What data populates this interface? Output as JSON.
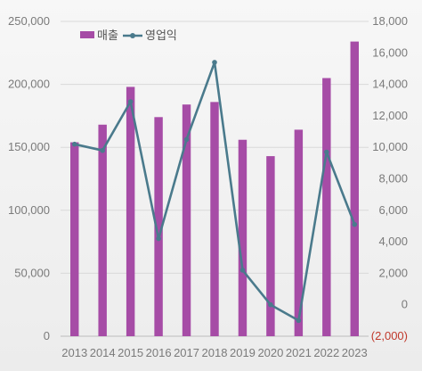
{
  "chart_data": {
    "type": "bar",
    "categories": [
      "2013",
      "2014",
      "2015",
      "2016",
      "2017",
      "2018",
      "2019",
      "2020",
      "2021",
      "2022",
      "2023"
    ],
    "series": [
      {
        "name": "매출",
        "type": "bar",
        "axis": "left",
        "color": "#a64ca6",
        "values": [
          154000,
          168000,
          198000,
          174000,
          184000,
          186000,
          156000,
          143000,
          164000,
          205000,
          234000
        ]
      },
      {
        "name": "영업익",
        "type": "line",
        "axis": "right",
        "color": "#4a7a8c",
        "values": [
          10200,
          9800,
          12900,
          4200,
          10500,
          15400,
          2200,
          0,
          -1000,
          9700,
          5100
        ]
      }
    ],
    "left_axis": {
      "min": 0,
      "max": 250000,
      "ticks": [
        0,
        50000,
        100000,
        150000,
        200000,
        250000
      ],
      "tick_labels": [
        "0",
        "50,000",
        "100,000",
        "150,000",
        "200,000",
        "250,000"
      ]
    },
    "right_axis": {
      "min": -2000,
      "max": 18000,
      "ticks": [
        -2000,
        0,
        2000,
        4000,
        6000,
        8000,
        10000,
        12000,
        14000,
        16000,
        18000
      ],
      "tick_labels": [
        "(2,000)",
        "0",
        "2,000",
        "4,000",
        "6,000",
        "8,000",
        "10,000",
        "12,000",
        "14,000",
        "16,000",
        "18,000"
      ],
      "negative_color": "#c0392b"
    },
    "title": "",
    "xlabel": "",
    "ylabel": "",
    "grid": true,
    "legend_position": "top-left"
  }
}
